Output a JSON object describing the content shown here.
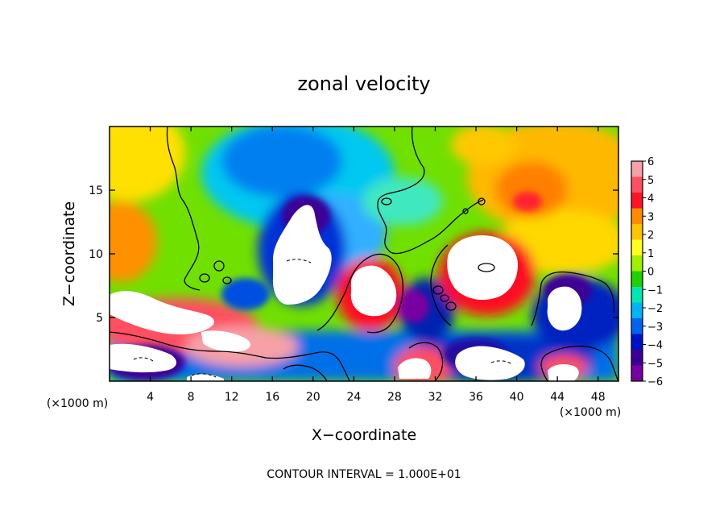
{
  "chart_data": {
    "type": "heatmap",
    "title": "zonal velocity",
    "xlabel": "X−coordinate",
    "ylabel": "Z−coordinate",
    "x_unit_label": "(×1000 m)",
    "z_unit_label": "(×1000 m)",
    "footer": "CONTOUR INTERVAL = 1.000E+01",
    "xlim": [
      0,
      50
    ],
    "ylim": [
      0,
      20
    ],
    "x_ticks": [
      4,
      8,
      12,
      16,
      20,
      24,
      28,
      32,
      36,
      40,
      44,
      48
    ],
    "y_ticks": [
      5,
      10,
      15
    ],
    "grid": false,
    "colorbar": {
      "levels": [
        6,
        5,
        4,
        3,
        2,
        1,
        0,
        -1,
        -2,
        -3,
        -4,
        -5,
        -6
      ],
      "tick_labels": [
        "6",
        "5",
        "4",
        "3",
        "2",
        "1",
        "0",
        "−1",
        "−2",
        "−3",
        "−4",
        "−5",
        "−6"
      ],
      "colors": [
        "#f7a0a8",
        "#ff5060",
        "#ff1428",
        "#ff8c00",
        "#ffc400",
        "#ffff20",
        "#a0f000",
        "#20d000",
        "#00e8b0",
        "#00b4f8",
        "#0064f0",
        "#0010c8",
        "#3c0096",
        "#7800a0"
      ]
    }
  }
}
